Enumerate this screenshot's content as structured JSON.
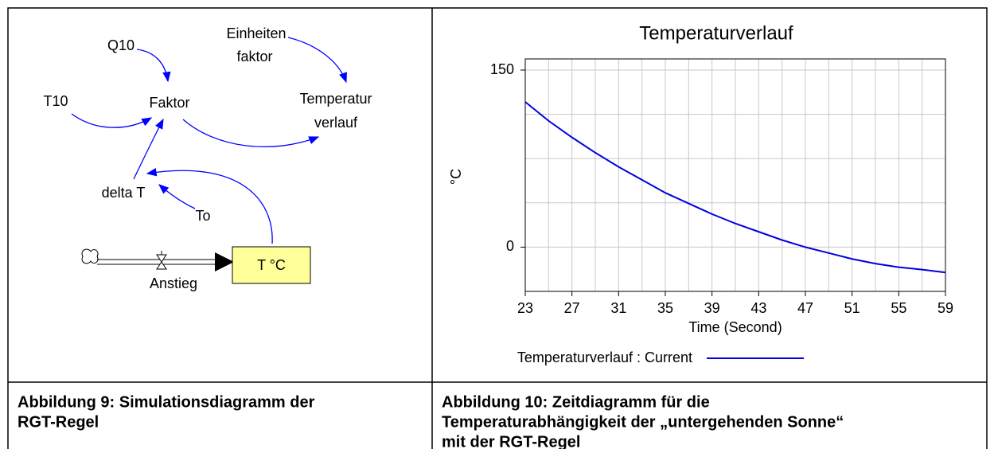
{
  "diagram": {
    "nodes": [
      {
        "label": "Q10"
      },
      {
        "label": "Einheiten"
      },
      {
        "label": "faktor"
      },
      {
        "label": "T10"
      },
      {
        "label": "Faktor"
      },
      {
        "label": "Temperatur"
      },
      {
        "label": "verlauf"
      },
      {
        "label": "delta T"
      },
      {
        "label": "To"
      },
      {
        "label": "T °C"
      },
      {
        "label": "Anstieg"
      }
    ]
  },
  "chart_data": {
    "type": "line",
    "title": "Temperaturverlauf",
    "x_label": "Time (Second)",
    "y_label": "°C",
    "x": [
      23,
      25,
      27,
      29,
      31,
      33,
      35,
      37,
      39,
      41,
      43,
      45,
      47,
      49,
      51,
      53,
      55,
      57,
      59
    ],
    "series": [
      {
        "name": "Temperaturverlauf : Current",
        "color": "#0000e0",
        "values": [
          123,
          107,
          93,
          80,
          68,
          57,
          46,
          37,
          28,
          20,
          13,
          6,
          0,
          -5,
          -10,
          -14,
          -17,
          -19,
          -21.5
        ]
      }
    ],
    "xlim": [
      23,
      59
    ],
    "xticks": [
      23,
      27,
      31,
      35,
      39,
      43,
      47,
      51,
      55,
      59
    ],
    "ylim": [
      -37.5,
      150
    ],
    "yticks": [
      0,
      150
    ],
    "grid": true
  },
  "captions": {
    "left": [
      "Abbildung 9: Simulationsdiagramm der",
      "RGT-Regel"
    ],
    "right": [
      "Abbildung 10: Zeitdiagramm für die",
      "Temperaturabhängigkeit der „untergehenden Sonne“",
      "mit der RGT-Regel"
    ]
  }
}
